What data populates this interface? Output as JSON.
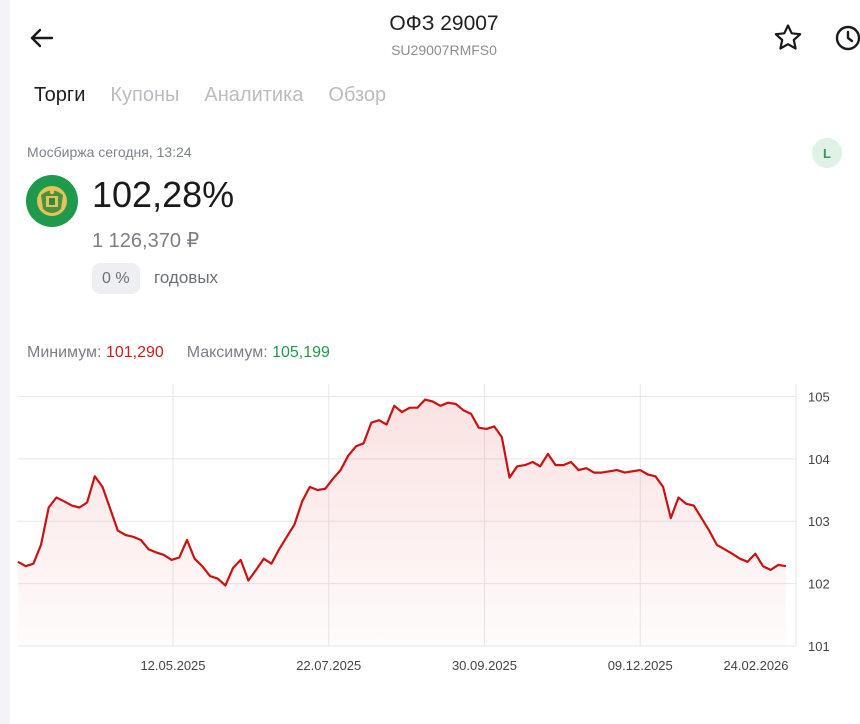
{
  "header": {
    "title": "ОФЗ 29007",
    "subtitle": "SU29007RMFS0"
  },
  "tabs": [
    {
      "label": "Торги",
      "active": true
    },
    {
      "label": "Купоны",
      "active": false
    },
    {
      "label": "Аналитика",
      "active": false
    },
    {
      "label": "Обзор",
      "active": false
    }
  ],
  "quote": {
    "exchange_time": "Мосбиржа сегодня, 13:24",
    "badge": "L",
    "price": "102,28%",
    "price_rub": "1 126,370 ₽",
    "yield_value": "0 %",
    "yield_label": "годовых"
  },
  "range": {
    "min_label": "Минимум:",
    "min_value": "101,290",
    "max_label": "Максимум:",
    "max_value": "105,199"
  },
  "colors": {
    "line": "#cc1111",
    "min": "#cc2020",
    "max": "#1f9a4d",
    "badge_bg": "#dff2e6",
    "emblem": "#1f9a4d"
  },
  "icons": [
    "back-arrow-icon",
    "star-icon",
    "clock-icon",
    "emblem-icon"
  ],
  "chart_data": {
    "type": "line",
    "ylim": [
      101,
      105.2
    ],
    "y_ticks": [
      "105",
      "104",
      "103",
      "102",
      "101"
    ],
    "x_ticks": [
      "12.05.2025",
      "22.07.2025",
      "30.09.2025",
      "09.12.2025",
      "24.02.2026"
    ],
    "grid": true,
    "fill": true,
    "values": [
      102.35,
      102.28,
      102.32,
      102.62,
      103.22,
      103.38,
      103.32,
      103.25,
      103.22,
      103.3,
      103.72,
      103.55,
      103.2,
      102.85,
      102.78,
      102.75,
      102.7,
      102.55,
      102.5,
      102.46,
      102.38,
      102.42,
      102.7,
      102.4,
      102.28,
      102.12,
      102.08,
      101.97,
      102.25,
      102.38,
      102.05,
      102.22,
      102.4,
      102.32,
      102.55,
      102.75,
      102.95,
      103.32,
      103.55,
      103.5,
      103.52,
      103.68,
      103.82,
      104.05,
      104.2,
      104.25,
      104.58,
      104.62,
      104.55,
      104.85,
      104.75,
      104.82,
      104.82,
      104.95,
      104.92,
      104.85,
      104.9,
      104.88,
      104.78,
      104.72,
      104.5,
      104.48,
      104.52,
      104.35,
      103.7,
      103.88,
      103.9,
      103.95,
      103.88,
      104.08,
      103.9,
      103.9,
      103.95,
      103.82,
      103.85,
      103.78,
      103.78,
      103.8,
      103.82,
      103.78,
      103.8,
      103.82,
      103.75,
      103.72,
      103.55,
      103.05,
      103.38,
      103.28,
      103.25,
      103.05,
      102.85,
      102.62,
      102.55,
      102.48,
      102.4,
      102.35,
      102.48,
      102.28,
      102.22,
      102.3,
      102.28
    ]
  }
}
